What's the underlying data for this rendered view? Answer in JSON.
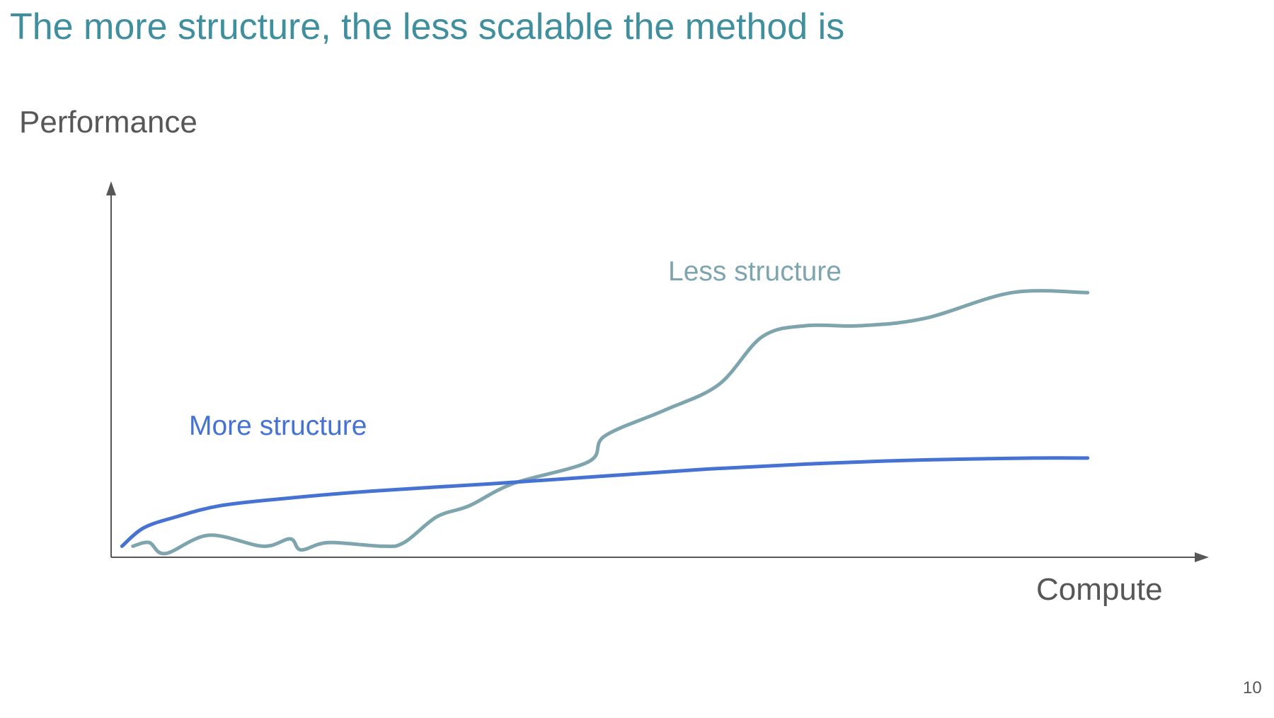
{
  "slide": {
    "title": "The more structure, the less scalable the method is",
    "page_number": "10"
  },
  "colors": {
    "title": "#3f8f9e",
    "axis": "#575757",
    "less_structure": "#7ea5ad",
    "more_structure": "#4672d2"
  },
  "chart_data": {
    "type": "line",
    "xlabel": "Compute",
    "ylabel": "Performance",
    "axis_ticks": false,
    "grid": false,
    "xlim": [
      0,
      100
    ],
    "ylim": [
      0,
      100
    ],
    "series": [
      {
        "name": "Less structure",
        "color": "#7ea5ad",
        "points": [
          [
            2,
            3
          ],
          [
            3.5,
            4
          ],
          [
            5,
            1
          ],
          [
            9,
            6
          ],
          [
            14,
            3
          ],
          [
            16.5,
            5
          ],
          [
            17.5,
            2
          ],
          [
            20,
            4
          ],
          [
            25,
            3
          ],
          [
            27,
            4
          ],
          [
            30,
            11
          ],
          [
            33,
            14
          ],
          [
            37,
            20
          ],
          [
            44,
            26
          ],
          [
            45.5,
            33
          ],
          [
            51,
            40
          ],
          [
            56,
            47
          ],
          [
            60,
            60
          ],
          [
            64,
            63
          ],
          [
            69,
            63
          ],
          [
            75,
            65
          ],
          [
            83,
            72
          ],
          [
            90,
            72
          ]
        ]
      },
      {
        "name": "More structure",
        "color": "#4672d2",
        "points": [
          [
            1,
            3
          ],
          [
            3,
            8
          ],
          [
            6,
            11
          ],
          [
            10,
            14
          ],
          [
            16,
            16
          ],
          [
            24,
            18
          ],
          [
            35,
            20
          ],
          [
            45,
            22
          ],
          [
            55,
            24
          ],
          [
            65,
            25.5
          ],
          [
            75,
            26.5
          ],
          [
            85,
            27
          ],
          [
            90,
            27
          ]
        ]
      }
    ]
  }
}
